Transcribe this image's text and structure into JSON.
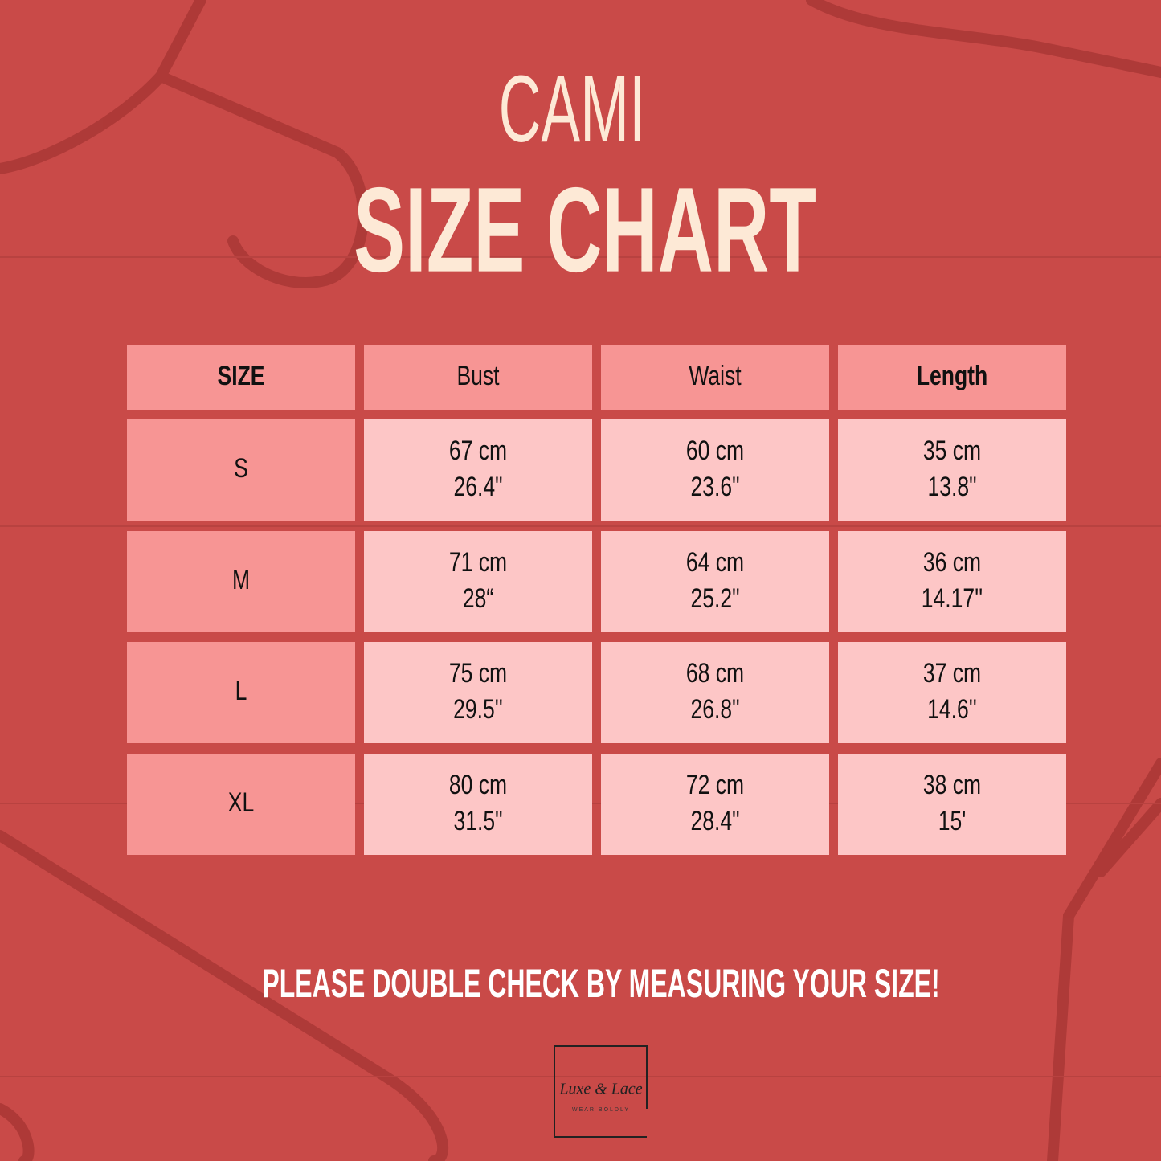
{
  "header": {
    "title": "CAMI",
    "subtitle": "SIZE CHART"
  },
  "table": {
    "columns": [
      "SIZE",
      "Bust",
      "Waist",
      "Length"
    ],
    "rows": [
      [
        "S",
        [
          "67 cm",
          "26.4\""
        ],
        [
          "60 cm",
          "23.6\""
        ],
        [
          "35 cm",
          "13.8\""
        ]
      ],
      [
        "M",
        [
          "71 cm",
          "28“"
        ],
        [
          "64 cm",
          "25.2\""
        ],
        [
          "36 cm",
          "14.17''"
        ]
      ],
      [
        "L",
        [
          "75 cm",
          "29.5''"
        ],
        [
          "68 cm",
          "26.8\""
        ],
        [
          "37 cm",
          "14.6''"
        ]
      ],
      [
        "XL",
        [
          "80 cm",
          "31.5\""
        ],
        [
          "72 cm",
          "28.4\""
        ],
        [
          "38 cm",
          "15'"
        ]
      ]
    ]
  },
  "footer": {
    "note": "PLEASE DOUBLE CHECK BY MEASURING YOUR SIZE!"
  },
  "logo": {
    "name": "Luxe & Lace",
    "tagline": "WEAR BOLDLY"
  }
}
